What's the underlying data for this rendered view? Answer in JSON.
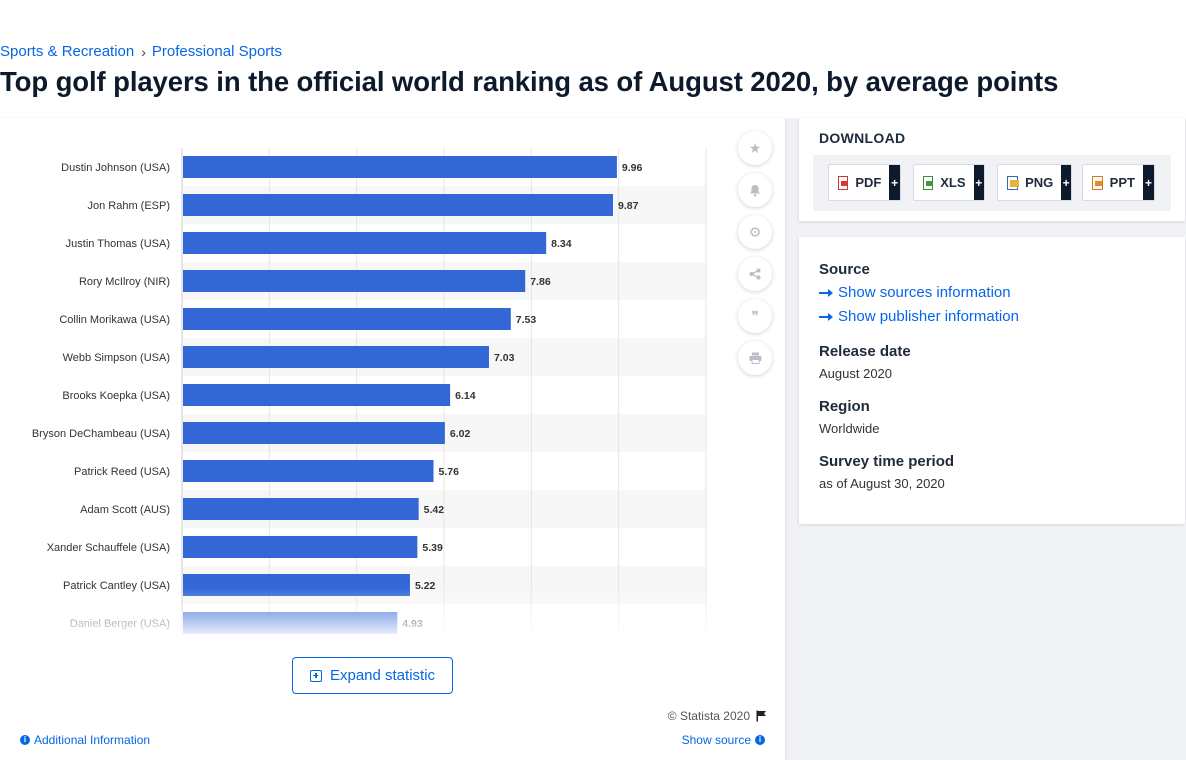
{
  "breadcrumb": {
    "items": [
      "Sports & Recreation",
      "Professional Sports"
    ],
    "separator": "›"
  },
  "title": "Top golf players in the official world ranking as of August 2020, by average points",
  "toolbar": {
    "icons": [
      "star-icon",
      "bell-icon",
      "gear-icon",
      "share-icon",
      "quote-icon",
      "print-icon"
    ]
  },
  "expand_label": "Expand statistic",
  "copyright": "© Statista 2020",
  "additional_info": "Additional Information",
  "show_source": "Show source",
  "download": {
    "title": "DOWNLOAD",
    "formats": [
      "PDF",
      "XLS",
      "PNG",
      "PPT"
    ],
    "plus": "+"
  },
  "meta": {
    "source_heading": "Source",
    "show_sources": "Show sources information",
    "show_publisher": "Show publisher information",
    "release_heading": "Release date",
    "release_value": "August 2020",
    "region_heading": "Region",
    "region_value": "Worldwide",
    "survey_heading": "Survey time period",
    "survey_value": "as of August 30, 2020"
  },
  "colors": {
    "bar": "#3367d6",
    "accent": "#0666e5"
  },
  "chart_data": {
    "type": "bar",
    "orientation": "horizontal",
    "categories": [
      "Dustin Johnson (USA)",
      "Jon Rahm (ESP)",
      "Justin Thomas (USA)",
      "Rory McIlroy (NIR)",
      "Collin Morikawa (USA)",
      "Webb Simpson (USA)",
      "Brooks Koepka (USA)",
      "Bryson DeChambeau (USA)",
      "Patrick Reed (USA)",
      "Adam Scott (AUS)",
      "Xander Schauffele (USA)",
      "Patrick Cantley (USA)",
      "Daniel Berger (USA)"
    ],
    "values": [
      9.96,
      9.87,
      8.34,
      7.86,
      7.53,
      7.03,
      6.14,
      6.02,
      5.76,
      5.42,
      5.39,
      5.22,
      4.93
    ],
    "value_labels": [
      "9.96",
      "9.87",
      "8.34",
      "7.86",
      "7.53",
      "7.03",
      "6.14",
      "6.02",
      "5.76",
      "5.42",
      "5.39",
      "5.22",
      "4.93"
    ],
    "xlim": [
      0,
      12
    ],
    "grid": true,
    "title": "",
    "xlabel": "",
    "ylabel": ""
  }
}
